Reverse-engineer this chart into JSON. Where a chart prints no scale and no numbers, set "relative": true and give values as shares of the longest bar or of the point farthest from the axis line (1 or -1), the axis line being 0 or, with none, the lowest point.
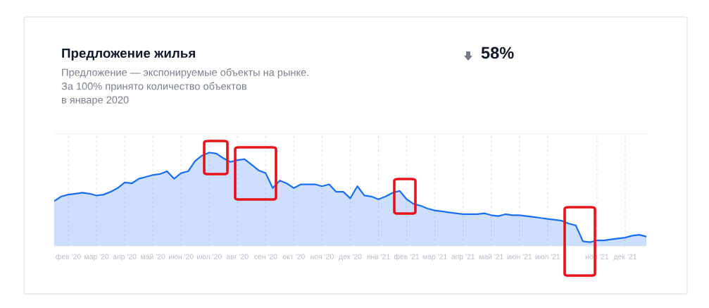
{
  "chart_data": {
    "type": "area",
    "title": "Предложение жилья",
    "subtitle": "Предложение — экспонируемые объекты на рынке.\nЗа 100% принято количество объектов\nв январе 2020",
    "annotations": [
      "58%"
    ],
    "relative": true,
    "grid": "x",
    "tick_labels": "x",
    "categories": [
      null,
      null,
      "фев '20",
      null,
      null,
      null,
      "мар '20",
      null,
      null,
      null,
      "апр '20",
      null,
      null,
      null,
      "май '20",
      null,
      null,
      null,
      "июн '20",
      null,
      null,
      null,
      "июл '20",
      null,
      null,
      null,
      "авг '20",
      null,
      null,
      null,
      "сен '20",
      null,
      null,
      null,
      "окт '20",
      null,
      null,
      null,
      "ноя '20",
      null,
      null,
      null,
      "дек '20",
      null,
      null,
      null,
      "янв '21",
      null,
      null,
      null,
      "фев '21",
      null,
      null,
      null,
      "мар '21",
      null,
      null,
      null,
      "апр '21",
      null,
      null,
      null,
      "май '21",
      null,
      null,
      null,
      "июн '21",
      null,
      null,
      null,
      "июл '21",
      null,
      null,
      null,
      null,
      null,
      null,
      "ноя '21",
      null,
      null,
      null,
      "дек '21",
      null,
      null,
      null
    ],
    "series": [
      {
        "color": "#1a6ff0",
        "values": [
          0.48,
          0.53,
          0.55,
          0.56,
          0.57,
          0.56,
          0.54,
          0.55,
          0.58,
          0.62,
          0.68,
          0.67,
          0.72,
          0.74,
          0.76,
          0.77,
          0.8,
          0.72,
          0.78,
          0.8,
          0.91,
          0.97,
          1,
          0.99,
          0.94,
          0.9,
          0.92,
          0.93,
          0.87,
          0.81,
          0.78,
          0.62,
          0.7,
          0.67,
          0.62,
          0.66,
          0.66,
          0.66,
          0.64,
          0.66,
          0.58,
          0.58,
          0.51,
          0.64,
          0.54,
          0.53,
          0.5,
          0.53,
          0.57,
          0.59,
          0.5,
          0.45,
          0.43,
          0.4,
          0.38,
          0.37,
          0.36,
          0.35,
          0.34,
          0.34,
          0.34,
          0.35,
          0.33,
          0.32,
          0.34,
          0.33,
          0.33,
          0.32,
          0.31,
          0.3,
          0.29,
          0.28,
          0.27,
          0.24,
          0.22,
          0.05,
          0.04,
          0.06,
          0.06,
          0.07,
          0.08,
          0.09,
          0.11,
          0.12,
          0.1
        ]
      }
    ]
  }
}
